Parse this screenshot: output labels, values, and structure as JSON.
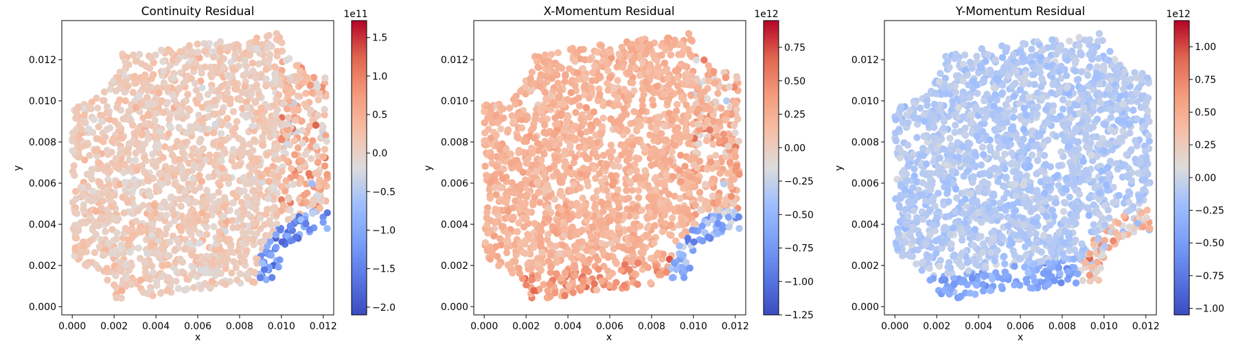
{
  "figure": {
    "subplots": [
      {
        "title": "Continuity Residual",
        "xlabel": "x",
        "ylabel": "y",
        "colorbar": {
          "exponent": "1e11",
          "ticks": [
            "1.5",
            "1.0",
            "0.5",
            "0.0",
            "−0.5",
            "−1.0",
            "−1.5",
            "−2.0"
          ]
        }
      },
      {
        "title": "X-Momentum Residual",
        "xlabel": "x",
        "ylabel": "y",
        "colorbar": {
          "exponent": "1e12",
          "ticks": [
            "0.75",
            "0.50",
            "0.25",
            "0.00",
            "−0.25",
            "−0.50",
            "−0.75",
            "−1.00",
            "−1.25"
          ]
        }
      },
      {
        "title": "Y-Momentum Residual",
        "xlabel": "x",
        "ylabel": "y",
        "colorbar": {
          "exponent": "1e12",
          "ticks": [
            "1.00",
            "0.75",
            "0.50",
            "0.25",
            "0.00",
            "−0.25",
            "−0.50",
            "−0.75",
            "−1.00"
          ]
        }
      }
    ]
  },
  "chart_data": [
    {
      "type": "scatter",
      "title": "Continuity Residual",
      "xlabel": "x",
      "ylabel": "y",
      "xlim": [
        -0.0005,
        0.0125
      ],
      "ylim": [
        -0.0004,
        0.0139
      ],
      "xticks": [
        0.0,
        0.002,
        0.004,
        0.006,
        0.008,
        0.01,
        0.012
      ],
      "yticks": [
        0.0,
        0.002,
        0.004,
        0.006,
        0.008,
        0.01,
        0.012
      ],
      "colormap": "coolwarm",
      "color_range": [
        -210000000000.0,
        172000000000.0
      ],
      "colorbar_ticks": [
        -200000000000.0,
        -150000000000.0,
        -100000000000.0,
        -50000000000.0,
        0,
        50000000000.0,
        100000000000.0,
        150000000000.0
      ],
      "colorbar_exponent": "1e11",
      "domain_corners": {
        "bottom_left": [
          0.002,
          0.0003
        ],
        "bottom_right": [
          0.01,
          0.0013
        ],
        "top_right": [
          0.0122,
          0.0115
        ],
        "top_left": [
          0.0,
          0.01
        ]
      },
      "value_pattern": "mostly near +0.1e11 (light orange); stronger positive up to 1.5e11 near right edge; negative down to -2.0e11 along lower-right arc"
    },
    {
      "type": "scatter",
      "title": "X-Momentum Residual",
      "xlabel": "x",
      "ylabel": "y",
      "xlim": [
        -0.0005,
        0.0125
      ],
      "ylim": [
        -0.0004,
        0.0139
      ],
      "xticks": [
        0.0,
        0.002,
        0.004,
        0.006,
        0.008,
        0.01,
        0.012
      ],
      "yticks": [
        0.0,
        0.002,
        0.004,
        0.006,
        0.008,
        0.01,
        0.012
      ],
      "colormap": "coolwarm",
      "color_range": [
        -1250000000000.0,
        950000000000.0
      ],
      "colorbar_ticks": [
        -1250000000000.0,
        -1000000000000.0,
        -750000000000.0,
        -500000000000.0,
        -250000000000.0,
        0,
        250000000000.0,
        500000000000.0,
        750000000000.0
      ],
      "colorbar_exponent": "1e12",
      "value_pattern": "mostly positive 0.1e12-0.4e12 (orange); strong positive near lower edge and right side; negative along lower-right arc"
    },
    {
      "type": "scatter",
      "title": "Y-Momentum Residual",
      "xlabel": "x",
      "ylabel": "y",
      "xlim": [
        -0.0005,
        0.0125
      ],
      "ylim": [
        -0.0004,
        0.0139
      ],
      "xticks": [
        0.0,
        0.002,
        0.004,
        0.006,
        0.008,
        0.01,
        0.012
      ],
      "yticks": [
        0.0,
        0.002,
        0.004,
        0.006,
        0.008,
        0.01,
        0.012
      ],
      "colormap": "coolwarm",
      "color_range": [
        -1050000000000.0,
        1200000000000.0
      ],
      "colorbar_ticks": [
        -1000000000000.0,
        -750000000000.0,
        -500000000000.0,
        -250000000000.0,
        0,
        250000000000.0,
        500000000000.0,
        750000000000.0,
        1000000000000.0
      ],
      "colorbar_exponent": "1e12",
      "value_pattern": "mostly slightly negative (light blue-gray); negative along bottom edge; positive (red) along lower-right arc"
    }
  ]
}
